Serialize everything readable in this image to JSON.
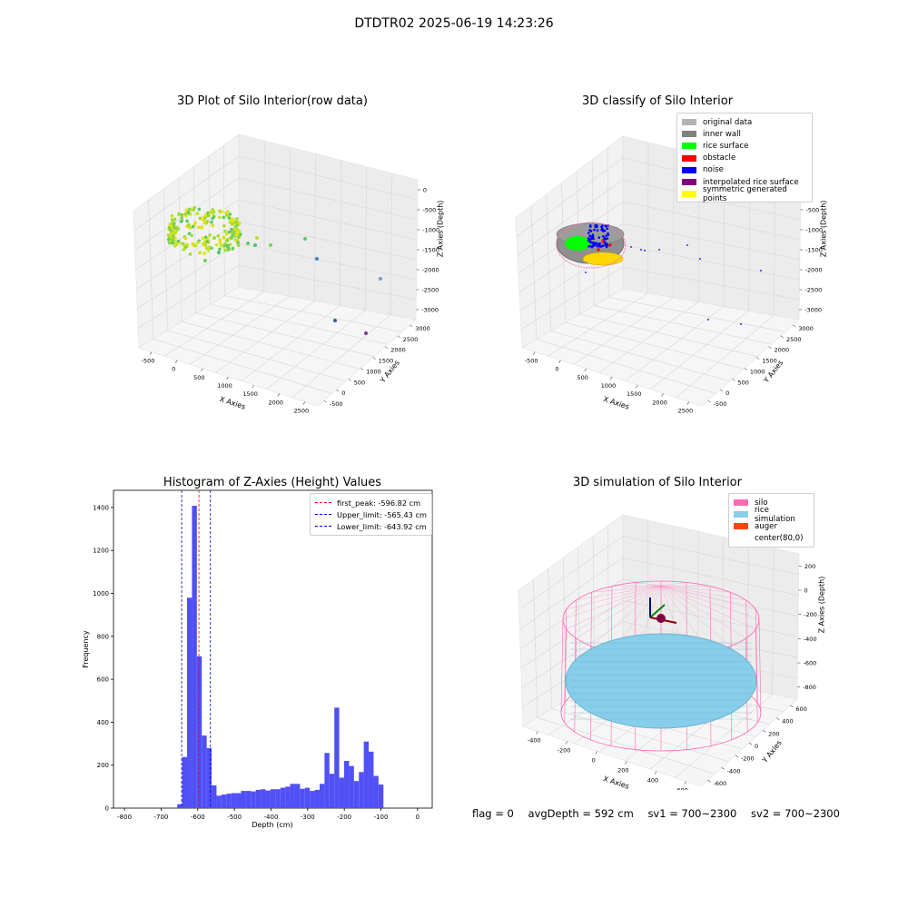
{
  "figure": {
    "suptitle": "DTDTR02 2025-06-19 14:23:26"
  },
  "panels": {
    "raw": {
      "title": "3D Plot of Silo Interior(row data)",
      "xlabel": "X Axies",
      "ylabel": "Y Axies",
      "zlabel": "Z Axies (Depth)",
      "xticks": [
        "-500",
        "0",
        "500",
        "1000",
        "1500",
        "2000",
        "2500"
      ],
      "yticks": [
        "-500",
        "0",
        "500",
        "1000",
        "1500",
        "2000",
        "2500",
        "3000"
      ],
      "zticks": [
        "0",
        "-500",
        "-1000",
        "-1500",
        "-2000",
        "-2500",
        "-3000"
      ]
    },
    "classify": {
      "title": "3D classify of Silo Interior",
      "xlabel": "X Axies",
      "ylabel": "Y Axies",
      "zlabel": "Z Axies (Depth)",
      "xticks": [
        "-500",
        "0",
        "500",
        "1000",
        "1500",
        "2000",
        "2500"
      ],
      "yticks": [
        "-500",
        "0",
        "500",
        "1000",
        "1500",
        "2000",
        "2500",
        "3000"
      ],
      "zticks": [
        "0",
        "-500",
        "-1000",
        "-1500",
        "-2000",
        "-2500",
        "-3000"
      ],
      "legend": [
        {
          "label": "original data",
          "color": "#b3b3b3"
        },
        {
          "label": "inner wall",
          "color": "#808080"
        },
        {
          "label": "rice surface",
          "color": "#00ff00"
        },
        {
          "label": "obstacle",
          "color": "#ff0000"
        },
        {
          "label": "noise",
          "color": "#0000ff"
        },
        {
          "label": "interpolated rice surface",
          "color": "#800080"
        },
        {
          "label": "symmetric generated points",
          "color": "#ffff00"
        }
      ]
    },
    "simulation": {
      "title": "3D simulation of Silo Interior",
      "xlabel": "X Axies",
      "ylabel": "Y Axies",
      "zlabel": "Z Axies (Depth)",
      "xticks": [
        "-400",
        "-200",
        "0",
        "200",
        "400",
        "600"
      ],
      "yticks": [
        "-600",
        "-400",
        "-200",
        "0",
        "200",
        "400",
        "600"
      ],
      "zticks": [
        "200",
        "0",
        "-200",
        "-400",
        "-600",
        "-800"
      ],
      "legend": [
        {
          "label": "silo",
          "color": "#ff69b4"
        },
        {
          "label": "rice simulation",
          "color": "#87ceeb"
        },
        {
          "label": "auger",
          "color": "#ff4500"
        },
        {
          "label": "center(80,0)",
          "color": "#ffffff"
        }
      ]
    },
    "status": {
      "flag": "flag = 0",
      "avg": "avgDepth = 592 cm",
      "sv1": "sv1 = 700~2300",
      "sv2": "sv2 = 700~2300"
    }
  },
  "chart_data": [
    {
      "type": "scatter",
      "title": "3D Plot of Silo Interior(row data)",
      "xlabel": "X Axies",
      "ylabel": "Y Axies",
      "zlabel": "Z Axies (Depth)",
      "xlim": [
        -600,
        2600
      ],
      "ylim": [
        -600,
        3200
      ],
      "zlim": [
        -3200,
        0
      ],
      "projection": "3d",
      "note_points": "dense ring of points around x 0..600, y 0..600, z -500..-900 plus sparse outliers",
      "colormap": "viridis"
    },
    {
      "type": "scatter",
      "title": "3D classify of Silo Interior",
      "xlabel": "X Axies",
      "ylabel": "Y Axies",
      "zlabel": "Z Axies (Depth)",
      "xlim": [
        -600,
        2600
      ],
      "ylim": [
        -600,
        3200
      ],
      "zlim": [
        -3200,
        0
      ],
      "projection": "3d",
      "series": [
        {
          "name": "original data"
        },
        {
          "name": "inner wall"
        },
        {
          "name": "rice surface"
        },
        {
          "name": "obstacle"
        },
        {
          "name": "noise"
        },
        {
          "name": "interpolated rice surface"
        },
        {
          "name": "symmetric generated points"
        }
      ]
    },
    {
      "type": "bar",
      "title": "Histogram of Z-Axies (Height) Values",
      "xlabel": "Depth (cm)",
      "ylabel": "Frequency",
      "xlim": [
        -830,
        40
      ],
      "ylim": [
        0,
        1480
      ],
      "xticks": [
        -800,
        -700,
        -600,
        -500,
        -400,
        -300,
        -200,
        -100,
        0
      ],
      "yticks": [
        0,
        200,
        400,
        600,
        800,
        1000,
        1200,
        1400
      ],
      "bin_width": 13.4,
      "bins_start": [
        -656.0,
        -642.6,
        -629.2,
        -615.8,
        -602.4,
        -589.0,
        -575.6,
        -562.2,
        -548.8,
        -535.4,
        -522.0,
        -508.6,
        -495.2,
        -481.8,
        -468.4,
        -455.0,
        -441.6,
        -428.2,
        -414.8,
        -401.4,
        -388.0,
        -374.6,
        -361.2,
        -347.8,
        -334.4,
        -321.0,
        -307.6,
        -294.2,
        -280.8,
        -267.4,
        -254.0,
        -240.6,
        -227.2,
        -213.8,
        -200.4,
        -187.0,
        -173.6,
        -160.2,
        -146.8,
        -133.4,
        -120.0,
        -106.6,
        -93.2,
        -79.8,
        -66.4,
        -53.0,
        -39.6,
        -26.2,
        -12.8
      ],
      "values": [
        18,
        238,
        980,
        1408,
        707,
        338,
        280,
        106,
        58,
        63,
        67,
        70,
        70,
        80,
        80,
        78,
        85,
        88,
        82,
        88,
        88,
        95,
        100,
        113,
        113,
        90,
        95,
        80,
        85,
        113,
        257,
        160,
        468,
        142,
        220,
        196,
        126,
        168,
        310,
        263,
        150,
        110,
        0,
        0,
        0,
        0,
        0,
        0,
        0
      ],
      "bar_color": "#5050f5",
      "vlines": [
        {
          "label": "first_peak: -596.82 cm",
          "x": -596.82,
          "color": "#ff0000"
        },
        {
          "label": "Upper_limit: -565.43 cm",
          "x": -565.43,
          "color": "#0000cc"
        },
        {
          "label": "Lower_limit: -643.92 cm",
          "x": -643.92,
          "color": "#0000cc"
        }
      ],
      "legend_position": "top-right"
    },
    {
      "type": "scatter",
      "title": "3D simulation of Silo Interior",
      "xlabel": "X Axies",
      "ylabel": "Y Axies",
      "zlabel": "Z Axies (Depth)",
      "xlim": [
        -500,
        700
      ],
      "ylim": [
        -700,
        700
      ],
      "zlim": [
        -900,
        300
      ],
      "projection": "3d",
      "series": [
        {
          "name": "silo"
        },
        {
          "name": "rice simulation"
        },
        {
          "name": "auger"
        },
        {
          "name": "center(80,0)"
        }
      ]
    }
  ]
}
